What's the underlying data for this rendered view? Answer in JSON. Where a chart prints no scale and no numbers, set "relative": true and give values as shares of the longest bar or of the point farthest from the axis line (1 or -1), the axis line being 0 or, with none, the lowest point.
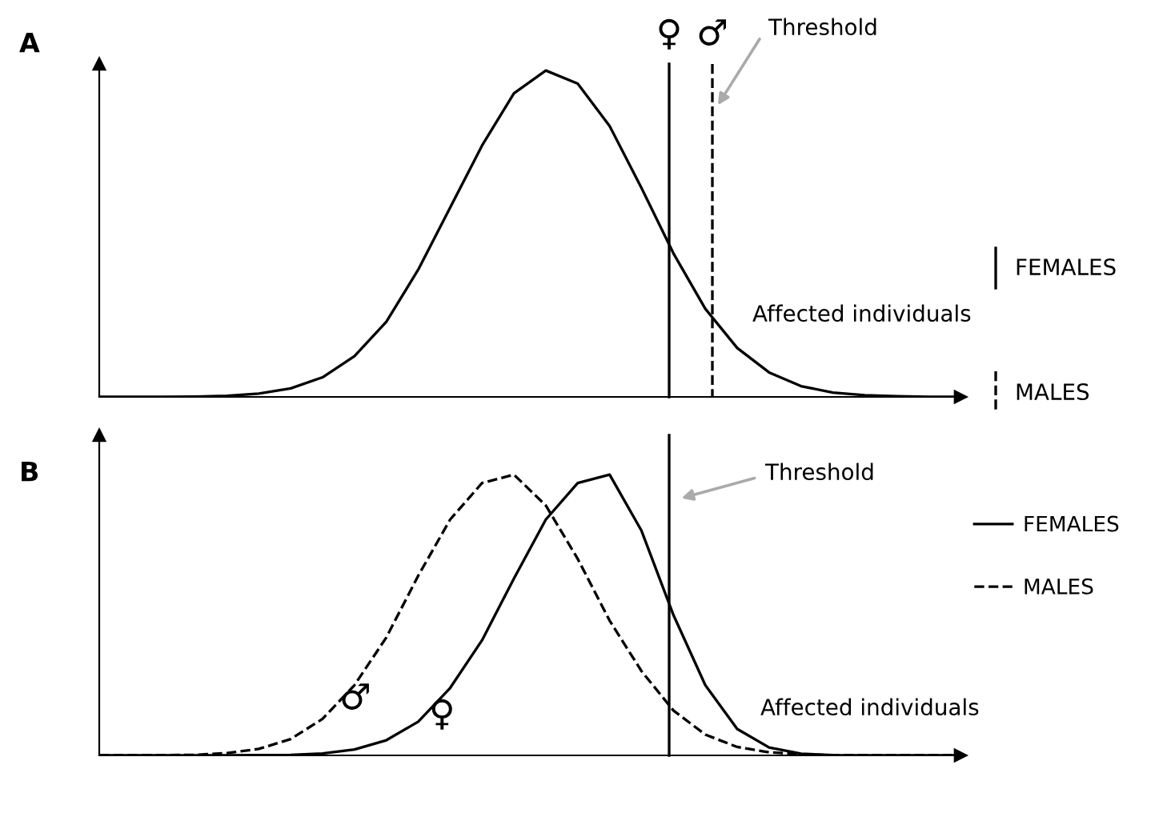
{
  "chart_data": [
    {
      "type": "line",
      "title": "A",
      "relative": true,
      "grid": false,
      "legend": false,
      "categories": [
        null,
        null,
        null,
        null,
        null,
        null,
        null,
        null,
        null,
        null,
        null,
        null,
        null,
        null,
        null,
        null,
        null,
        null,
        null,
        null,
        null,
        null,
        null,
        null,
        null,
        null,
        null,
        null
      ],
      "series": [
        {
          "color": "#000000",
          "line_style": "solid",
          "values": [
            0,
            0,
            0,
            0.001,
            0.003,
            0.01,
            0.026,
            0.06,
            0.125,
            0.23,
            0.39,
            0.58,
            0.77,
            0.93,
            1,
            0.96,
            0.83,
            0.64,
            0.44,
            0.27,
            0.15,
            0.075,
            0.033,
            0.013,
            0.005,
            0.002,
            0,
            0
          ]
        }
      ],
      "annotations": [
        "♀",
        "♂",
        "Threshold",
        "Affected individuals",
        "FEMALES",
        "MALES"
      ]
    },
    {
      "type": "line",
      "title": "B",
      "relative": true,
      "grid": false,
      "legend": "right",
      "categories": [
        null,
        null,
        null,
        null,
        null,
        null,
        null,
        null,
        null,
        null,
        null,
        null,
        null,
        null,
        null,
        null,
        null,
        null,
        null,
        null,
        null,
        null,
        null,
        null,
        null,
        null,
        null,
        null
      ],
      "series": [
        {
          "name": "FEMALES",
          "color": "#000000",
          "line_style": "solid",
          "values": [
            0,
            0,
            0,
            0,
            0,
            0.001,
            0.002,
            0.007,
            0.021,
            0.054,
            0.12,
            0.24,
            0.41,
            0.63,
            0.84,
            0.97,
            1,
            0.8,
            0.5,
            0.25,
            0.094,
            0.028,
            0.006,
            0.001,
            0,
            0,
            0,
            0
          ]
        },
        {
          "name": "MALES",
          "color": "#000000",
          "line_style": "dashed",
          "values": [
            0,
            0,
            0.001,
            0.002,
            0.008,
            0.023,
            0.058,
            0.13,
            0.25,
            0.42,
            0.64,
            0.84,
            0.97,
            1,
            0.89,
            0.7,
            0.48,
            0.3,
            0.16,
            0.074,
            0.03,
            0.011,
            0.004,
            0,
            0,
            0,
            0,
            0
          ]
        }
      ],
      "annotations": [
        "Threshold",
        "Affected individuals",
        "♂",
        "♀"
      ]
    }
  ]
}
